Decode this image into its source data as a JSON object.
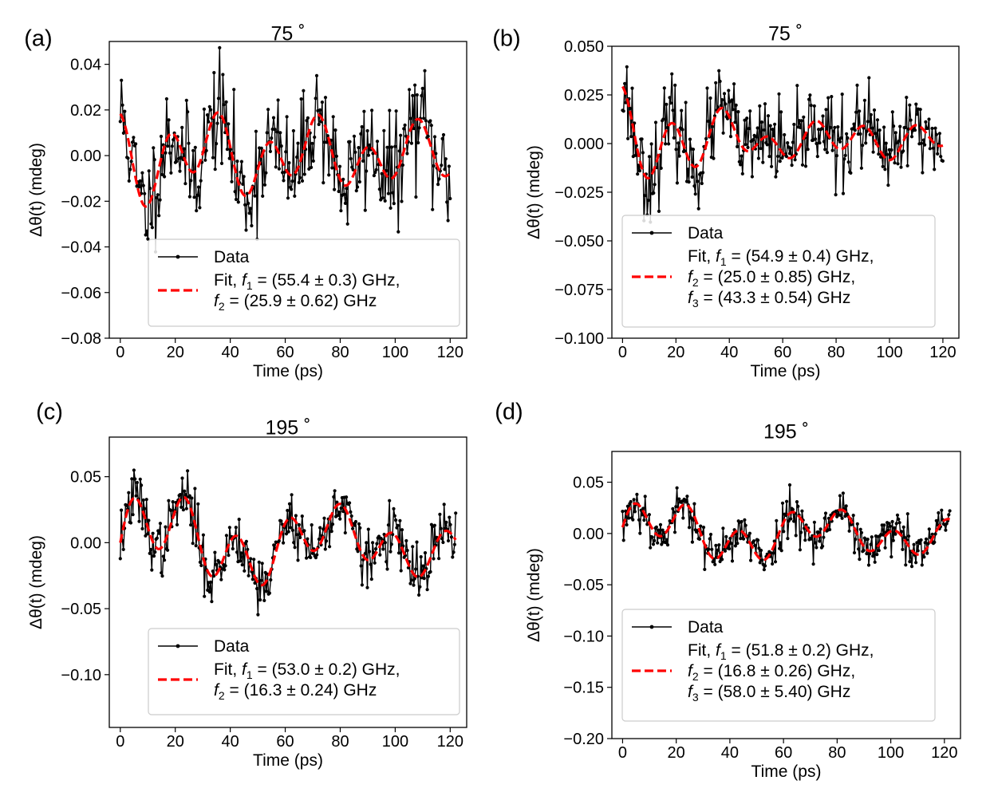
{
  "figure": {
    "background": "#ffffff"
  },
  "chart_data": [
    {
      "type": "line",
      "panel_label": "(a)",
      "title": "75 ˚",
      "xlabel": "Time (ps)",
      "ylabel": "Δθ(t) (mdeg)",
      "xlim": [
        -4,
        126
      ],
      "ylim": [
        -0.08,
        0.05
      ],
      "xticks": [
        0,
        20,
        40,
        60,
        80,
        100,
        120
      ],
      "yticks": [
        -0.08,
        -0.06,
        -0.04,
        -0.02,
        0.0,
        0.02,
        0.04
      ],
      "ytick_labels": [
        "−0.08",
        "−0.06",
        "−0.04",
        "−0.02",
        "0.00",
        "0.02",
        "0.04"
      ],
      "legend": {
        "position": "lower-right",
        "data_label": "Data",
        "fit_lines": [
          {
            "pre": "Fit, ",
            "sym": "f",
            "sub": "1",
            "post": " = (55.4 ± 0.3) GHz,"
          },
          {
            "pre": "",
            "sym": "f",
            "sub": "2",
            "post": " = (25.9 ± 0.62) GHz"
          }
        ]
      },
      "series": [
        {
          "name": "Data",
          "color": "#000000",
          "style": "solid with dot markers",
          "x_range": [
            0,
            120
          ],
          "n_points": 300,
          "noise": 0.012,
          "seed": 11
        },
        {
          "name": "Fit",
          "color": "#ff0000",
          "style": "dashed",
          "x_range": [
            0,
            120
          ],
          "offset": 0.0,
          "components": [
            {
              "freq_ghz": 55.4,
              "amplitude": 0.015,
              "phase": 0.0,
              "tau_ps": 250
            },
            {
              "freq_ghz": 25.9,
              "amplitude": 0.009,
              "phase": 1.2,
              "tau_ps": 300
            }
          ]
        }
      ]
    },
    {
      "type": "line",
      "panel_label": "(b)",
      "title": "75 ˚",
      "xlabel": "Time (ps)",
      "ylabel": "Δθ(t) (mdeg)",
      "xlim": [
        -4,
        126
      ],
      "ylim": [
        -0.1,
        0.05
      ],
      "xticks": [
        0,
        20,
        40,
        60,
        80,
        100,
        120
      ],
      "yticks": [
        -0.1,
        -0.075,
        -0.05,
        -0.025,
        0.0,
        0.025,
        0.05
      ],
      "ytick_labels": [
        "−0.100",
        "−0.075",
        "−0.050",
        "−0.025",
        "0.000",
        "0.025",
        "0.050"
      ],
      "legend": {
        "position": "lower-center",
        "data_label": "Data",
        "fit_lines": [
          {
            "pre": "Fit, ",
            "sym": "f",
            "sub": "1",
            "post": " = (54.9 ± 0.4) GHz,"
          },
          {
            "pre": "",
            "sym": "f",
            "sub": "2",
            "post": " = (25.0 ± 0.85) GHz,"
          },
          {
            "pre": "",
            "sym": "f",
            "sub": "3",
            "post": " = (43.3 ± 0.54) GHz"
          }
        ]
      },
      "series": [
        {
          "name": "Data",
          "color": "#000000",
          "style": "solid with dot markers",
          "x_range": [
            0,
            120
          ],
          "n_points": 300,
          "noise": 0.011,
          "seed": 23
        },
        {
          "name": "Fit",
          "color": "#ff0000",
          "style": "dashed",
          "x_range": [
            0,
            120
          ],
          "offset": 0.002,
          "components": [
            {
              "freq_ghz": 54.9,
              "amplitude": 0.014,
              "phase": 0.0,
              "tau_ps": 120
            },
            {
              "freq_ghz": 25.0,
              "amplitude": 0.01,
              "phase": 0.3,
              "tau_ps": 80
            },
            {
              "freq_ghz": 43.3,
              "amplitude": 0.006,
              "phase": 0.9,
              "tau_ps": 80
            }
          ]
        }
      ]
    },
    {
      "type": "line",
      "panel_label": "(c)",
      "title": "195 ˚",
      "xlabel": "Time (ps)",
      "ylabel": "Δθ(t) (mdeg)",
      "xlim": [
        -4,
        126
      ],
      "ylim": [
        -0.14,
        0.08
      ],
      "xticks": [
        0,
        20,
        40,
        60,
        80,
        100,
        120
      ],
      "yticks": [
        -0.1,
        -0.05,
        0.0,
        0.05
      ],
      "ytick_labels": [
        "−0.10",
        "−0.05",
        "0.00",
        "0.05"
      ],
      "legend": {
        "position": "lower-right",
        "data_label": "Data",
        "fit_lines": [
          {
            "pre": "Fit, ",
            "sym": "f",
            "sub": "1",
            "post": " = (53.0 ± 0.2) GHz,"
          },
          {
            "pre": "",
            "sym": "f",
            "sub": "2",
            "post": " = (16.3 ± 0.24) GHz"
          }
        ]
      },
      "series": [
        {
          "name": "Data",
          "color": "#000000",
          "style": "solid with dot markers",
          "x_range": [
            0,
            122
          ],
          "n_points": 320,
          "noise": 0.011,
          "seed": 37
        },
        {
          "name": "Fit",
          "color": "#ff0000",
          "style": "dashed",
          "x_range": [
            0,
            122
          ],
          "offset": 0.0,
          "components": [
            {
              "freq_ghz": 53.0,
              "amplitude": 0.025,
              "phase": -1.5708,
              "tau_ps": 200
            },
            {
              "freq_ghz": 16.3,
              "amplitude": 0.02,
              "phase": -1.5708,
              "tau_ps": 200
            }
          ]
        }
      ]
    },
    {
      "type": "line",
      "panel_label": "(d)",
      "title": "195 ˚",
      "xlabel": "Time (ps)",
      "ylabel": "Δθ(t) (mdeg)",
      "xlim": [
        -4,
        126
      ],
      "ylim": [
        -0.2,
        0.08
      ],
      "xticks": [
        0,
        20,
        40,
        60,
        80,
        100,
        120
      ],
      "yticks": [
        -0.2,
        -0.15,
        -0.1,
        -0.05,
        0.0,
        0.05
      ],
      "ytick_labels": [
        "−0.20",
        "−0.15",
        "−0.10",
        "−0.05",
        "0.00",
        "0.05"
      ],
      "legend": {
        "position": "lower-center",
        "data_label": "Data",
        "fit_lines": [
          {
            "pre": "Fit, ",
            "sym": "f",
            "sub": "1",
            "post": " = (51.8 ± 0.2) GHz,"
          },
          {
            "pre": "",
            "sym": "f",
            "sub": "2",
            "post": " = (16.8 ± 0.26) GHz,"
          },
          {
            "pre": "",
            "sym": "f",
            "sub": "3",
            "post": " = (58.0 ± 5.40) GHz"
          }
        ]
      },
      "series": [
        {
          "name": "Data",
          "color": "#000000",
          "style": "solid with dot markers",
          "x_range": [
            0,
            122
          ],
          "n_points": 320,
          "noise": 0.011,
          "seed": 53
        },
        {
          "name": "Fit",
          "color": "#ff0000",
          "style": "dashed",
          "x_range": [
            0,
            122
          ],
          "offset": 0.0,
          "components": [
            {
              "freq_ghz": 51.8,
              "amplitude": 0.022,
              "phase": -1.5708,
              "tau_ps": 200
            },
            {
              "freq_ghz": 16.8,
              "amplitude": 0.018,
              "phase": -1.5708,
              "tau_ps": 200
            },
            {
              "freq_ghz": 58.0,
              "amplitude": 0.006,
              "phase": 0.0,
              "tau_ps": 15
            }
          ]
        }
      ]
    }
  ]
}
